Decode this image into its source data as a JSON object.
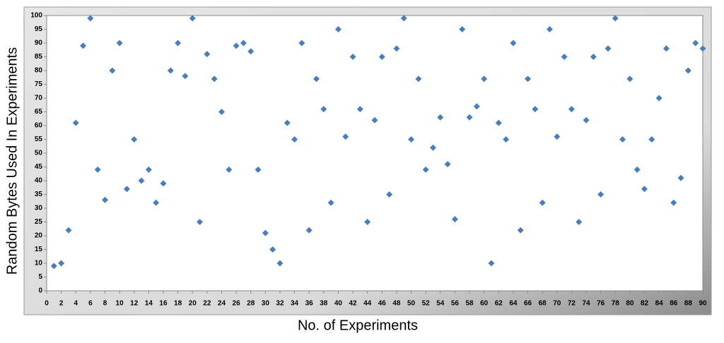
{
  "chart_data": {
    "type": "scatter",
    "x_label": "No. of Experiments",
    "y_label": "Random Bytes Used In Experiments",
    "x": [
      1,
      2,
      3,
      4,
      5,
      6,
      7,
      8,
      9,
      10,
      11,
      12,
      13,
      14,
      15,
      16,
      17,
      18,
      19,
      20,
      21,
      22,
      23,
      24,
      25,
      26,
      27,
      28,
      29,
      30,
      31,
      32,
      33,
      34,
      35,
      36,
      37,
      38,
      39,
      40,
      41,
      42,
      43,
      44,
      45,
      46,
      47,
      48,
      49,
      50,
      51,
      52,
      53,
      54,
      55,
      56,
      57,
      58,
      59,
      60,
      61,
      62,
      63,
      64,
      65,
      66,
      67,
      68,
      69,
      70,
      71,
      72,
      73,
      74,
      75,
      76,
      77,
      78,
      79,
      80,
      81,
      82,
      83,
      84,
      85,
      86,
      87,
      88,
      89,
      90
    ],
    "series": [
      {
        "color": "#4a7ebb",
        "values": [
          9,
          10,
          22,
          61,
          89,
          99,
          44,
          33,
          80,
          90,
          37,
          55,
          40,
          44,
          32,
          39,
          80,
          90,
          78,
          99,
          25,
          86,
          77,
          65,
          44,
          89,
          90,
          87,
          44,
          21,
          15,
          10,
          61,
          55,
          90,
          22,
          77,
          66,
          32,
          95,
          56,
          85,
          66,
          25,
          62,
          85,
          35,
          88,
          99,
          55,
          77,
          44,
          52,
          63,
          46,
          26,
          95,
          63,
          67,
          77,
          10,
          61,
          55,
          90,
          22,
          77,
          66,
          32,
          95,
          56,
          85,
          66,
          25,
          62,
          85,
          35,
          88,
          99,
          55,
          77,
          44,
          37,
          55,
          70,
          88,
          32,
          41,
          80,
          90,
          88
        ]
      }
    ],
    "xlim": [
      0,
      90
    ],
    "xticks": [
      0,
      2,
      4,
      6,
      8,
      10,
      12,
      14,
      16,
      18,
      20,
      22,
      24,
      26,
      28,
      30,
      32,
      34,
      36,
      38,
      40,
      42,
      44,
      46,
      48,
      50,
      52,
      54,
      56,
      58,
      60,
      62,
      64,
      66,
      68,
      70,
      72,
      74,
      76,
      78,
      80,
      82,
      84,
      86,
      88,
      90
    ],
    "ylim": [
      0,
      100
    ],
    "yticks": [
      0,
      5,
      10,
      15,
      20,
      25,
      30,
      35,
      40,
      45,
      50,
      55,
      60,
      65,
      70,
      75,
      80,
      85,
      90,
      95,
      100
    ]
  }
}
